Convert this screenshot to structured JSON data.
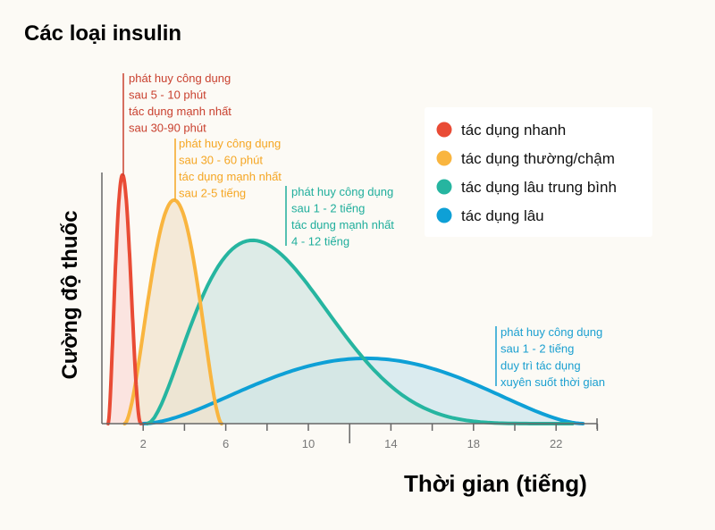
{
  "chart_data": {
    "type": "area",
    "title": "Các loại insulin",
    "xlabel": "Thời gian (tiếng)",
    "ylabel": "Cường độ thuốc",
    "xlim": [
      0,
      24
    ],
    "ylim": [
      0,
      1
    ],
    "x_ticks": [
      2,
      6,
      10,
      14,
      18,
      22
    ],
    "grid": false,
    "legend_position": "top-right",
    "series": [
      {
        "name": "tác dụng nhanh",
        "color": "#e94b35",
        "fill": "#fbdcd8",
        "start": 0.3,
        "peak": 1.0,
        "end": 1.9,
        "peak_intensity": 0.99,
        "annotation": [
          "phát huy công dụng",
          "sau 5 - 10 phút",
          "tác dụng mạnh nhất",
          "sau 30-90 phút"
        ],
        "annotation_color": "#c9412f"
      },
      {
        "name": "tác dụng thường/chậm",
        "color": "#f9b53f",
        "fill": "#f1e3cc",
        "start": 1.1,
        "peak": 3.5,
        "end": 5.8,
        "peak_intensity": 0.89,
        "annotation": [
          "phát huy công dụng",
          "sau 30 - 60 phút",
          "tác dụng mạnh nhất",
          "sau 2-5 tiếng"
        ],
        "annotation_color": "#f5a623"
      },
      {
        "name": "tác dụng lâu trung bình",
        "color": "#26b5a0",
        "fill": "#d3e6e2",
        "start": 2.2,
        "peak": 7.3,
        "end": 22.8,
        "peak_intensity": 0.73,
        "annotation": [
          "phát huy công dụng",
          "sau 1 - 2 tiếng",
          "tác dụng mạnh nhất",
          "4 - 12 tiếng"
        ],
        "annotation_color": "#1fae9c"
      },
      {
        "name": "tác dụng lâu",
        "color": "#0ea0d6",
        "fill": "#cfe5ec",
        "start": 2.0,
        "peak": 12.8,
        "end": 23.3,
        "peak_intensity": 0.26,
        "annotation": [
          "phát huy công dụng",
          "sau 1 - 2 tiếng",
          "duy trì tác dụng",
          "xuyên suốt thời gian"
        ],
        "annotation_color": "#1a9fd0"
      }
    ]
  }
}
